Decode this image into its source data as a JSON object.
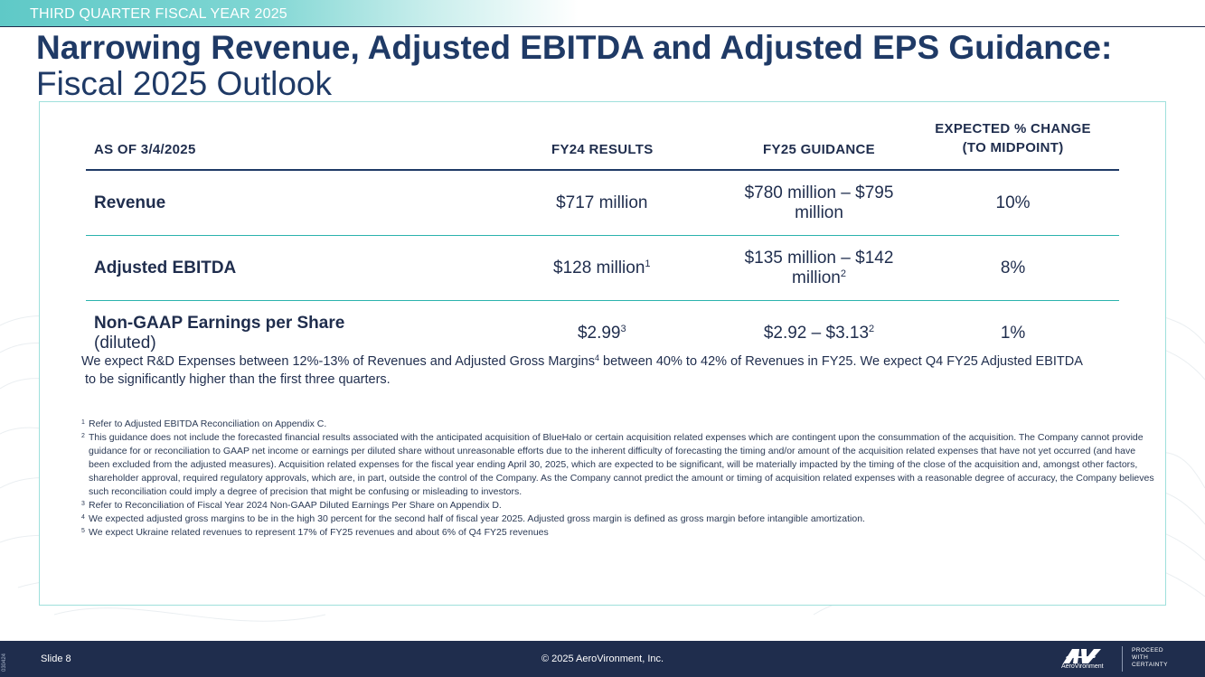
{
  "header": {
    "banner": "THIRD QUARTER FISCAL YEAR 2025",
    "title_bold": "Narrowing Revenue, Adjusted EBITDA and Adjusted EPS Guidance:",
    "title_normal": "Fiscal 2025 Outlook"
  },
  "table": {
    "headers": [
      "AS OF 3/4/2025",
      "FY24 RESULTS",
      "FY25 GUIDANCE",
      "EXPECTED % CHANGE",
      "(TO MIDPOINT)"
    ],
    "rows": [
      {
        "label": "Revenue",
        "suffix": "",
        "fy24": "$717 million",
        "fy24_note": "",
        "fy25": "$780 million – $795 million",
        "fy25_note": "",
        "change": "10%"
      },
      {
        "label": "Adjusted EBITDA",
        "suffix": "",
        "fy24": "$128 million",
        "fy24_note": "1",
        "fy25": "$135 million – $142 million",
        "fy25_note": "2",
        "change": "8%"
      },
      {
        "label": "Non-GAAP Earnings per Share",
        "suffix": " (diluted)",
        "fy24": "$2.99",
        "fy24_note": "3",
        "fy25": "$2.92 – $3.13",
        "fy25_note": "2",
        "change": "1%"
      }
    ]
  },
  "expectation": {
    "part1": "We expect R&D Expenses between 12%-13% of Revenues and Adjusted Gross Margins",
    "note": "4",
    "part2": " between 40% to 42% of Revenues in FY25. We expect Q4 FY25 Adjusted EBITDA",
    "line2": "to be significantly higher than the first three quarters."
  },
  "footnotes": [
    {
      "num": "1",
      "text": "Refer to Adjusted EBITDA Reconciliation on Appendix C."
    },
    {
      "num": "2",
      "text": "This guidance does not include the forecasted financial results associated with the anticipated acquisition of BlueHalo or certain acquisition related expenses which are contingent upon the consummation of the acquisition. The Company cannot provide guidance for or reconciliation to GAAP net income or earnings per diluted share without unreasonable efforts due to the inherent difficulty of forecasting the timing and/or amount of the acquisition related expenses that have not yet occurred (and have been excluded from the adjusted measures). Acquisition related expenses for the fiscal year ending April 30, 2025, which are expected to be significant, will be materially impacted by the timing of the close of the acquisition and, amongst other factors, shareholder approval, required regulatory approvals, which are, in part, outside the control of the Company. As the Company cannot predict the amount or timing of acquisition related expenses with a reasonable degree of accuracy, the Company believes such reconciliation could imply a degree of precision that might be confusing or misleading to investors."
    },
    {
      "num": "3",
      "text": "Refer to Reconciliation of Fiscal Year 2024 Non-GAAP Diluted Earnings Per Share on Appendix D."
    },
    {
      "num": "4",
      "text": "We expected adjusted gross margins to be in the high 30 percent for the second half of fiscal year 2025. Adjusted gross margin is defined as gross margin before intangible amortization."
    },
    {
      "num": "5",
      "text": "We expect Ukraine related revenues to represent 17% of FY25 revenues and about 6% of Q4 FY25 revenues"
    }
  ],
  "footer": {
    "code": "030424",
    "slide": "Slide 8",
    "copyright": "© 2025 AeroVironment, Inc.",
    "logo_word": "AeroVironment",
    "tagline": [
      "PROCEED",
      "WITH",
      "CERTAINTY"
    ]
  }
}
